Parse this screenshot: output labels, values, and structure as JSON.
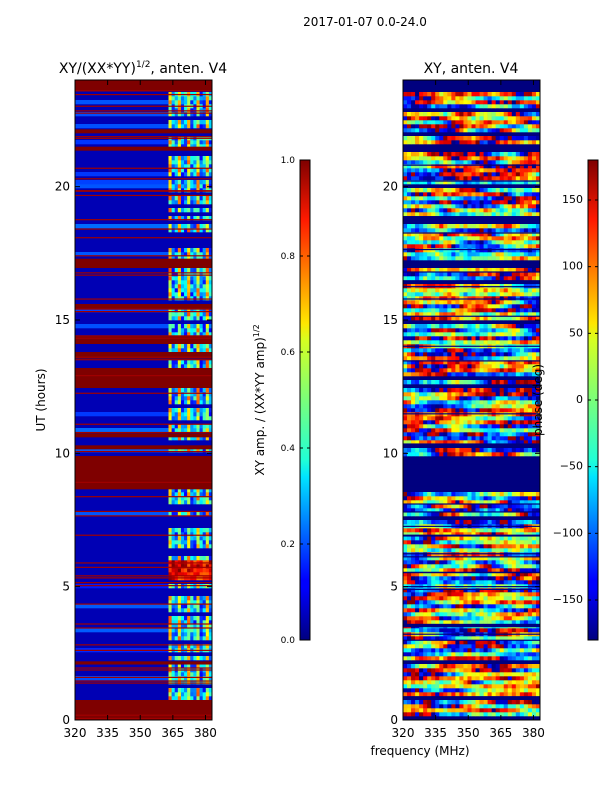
{
  "suptitle": "2017-01-07 0.0-24.0",
  "shared_xlabel": "frequency (MHz)",
  "chart_data": [
    {
      "type": "heatmap",
      "title_main": "XY/(XX*YY)",
      "title_sup": "1/2",
      "title_tail": ", anten. V4",
      "xlabel": "",
      "ylabel": "UT (hours)",
      "xlim": [
        320,
        383
      ],
      "ylim": [
        0,
        24
      ],
      "xticks": [
        320,
        335,
        350,
        365,
        380
      ],
      "yticks": [
        0,
        5,
        10,
        15,
        20
      ],
      "colorbar": {
        "label_main": "XY amp. / (XX*YY amp)",
        "label_sup": "1/2",
        "range": [
          0.0,
          1.0
        ],
        "ticks": [
          "0.0",
          "0.2",
          "0.4",
          "0.6",
          "0.8",
          "1.0"
        ],
        "colormap": "jet"
      },
      "features": {
        "band_start_mhz": 363,
        "flagged_ut_hours": [
          [
            0.0,
            0.75
          ],
          [
            2.08,
            2.2
          ],
          [
            8.65,
            9.9
          ],
          [
            10.15,
            10.3
          ],
          [
            10.6,
            10.75
          ],
          [
            12.45,
            13.2
          ],
          [
            13.55,
            13.8
          ],
          [
            14.1,
            14.4
          ],
          [
            15.4,
            15.6
          ],
          [
            16.95,
            17.3
          ],
          [
            21.35,
            21.5
          ],
          [
            22.0,
            22.15
          ],
          [
            23.6,
            24.0
          ]
        ],
        "bright_ut_hours": [
          5.2,
          6.0
        ]
      }
    },
    {
      "type": "heatmap",
      "title_main": "XY, anten. V4",
      "xlabel": "frequency (MHz)",
      "ylabel": "",
      "xlim": [
        320,
        383
      ],
      "ylim": [
        0,
        24
      ],
      "xticks": [
        320,
        335,
        350,
        365,
        380
      ],
      "yticks": [
        0,
        5,
        10,
        15,
        20
      ],
      "colorbar": {
        "label_main": "phase (deg)",
        "range": [
          -180,
          180
        ],
        "ticks": [
          "−150",
          "−100",
          "−50",
          "0",
          "50",
          "100",
          "150"
        ],
        "colormap": "jet"
      },
      "features": {
        "flagged_ut_hours": [
          [
            0.0,
            0.15
          ],
          [
            0.75,
            0.85
          ],
          [
            2.08,
            2.2
          ],
          [
            8.65,
            9.9
          ],
          [
            10.15,
            10.3
          ],
          [
            12.45,
            12.6
          ],
          [
            15.4,
            15.5
          ],
          [
            17.0,
            17.2
          ],
          [
            21.35,
            21.5
          ],
          [
            23.6,
            24.0
          ]
        ]
      }
    }
  ]
}
